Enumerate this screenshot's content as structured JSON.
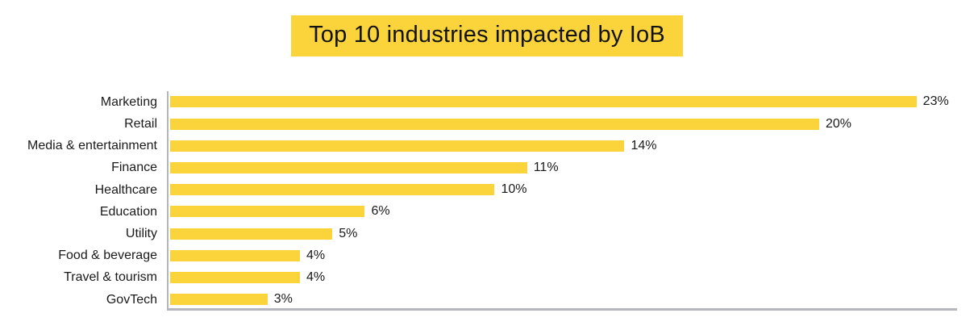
{
  "title": {
    "text": "Top 10 industries impacted by IoB",
    "highlight_color": "#FBD43C",
    "text_color": "#121212"
  },
  "chart_data": {
    "type": "bar",
    "orientation": "horizontal",
    "title": "Top 10 industries impacted by IoB",
    "xlabel": "",
    "ylabel": "",
    "categories": [
      "Marketing",
      "Retail",
      "Media & entertainment",
      "Finance",
      "Healthcare",
      "Education",
      "Utility",
      "Food & beverage",
      "Travel & tourism",
      "GovTech"
    ],
    "values": [
      23,
      20,
      14,
      11,
      10,
      6,
      5,
      4,
      4,
      3
    ],
    "data_labels": [
      "23%",
      "20%",
      "14%",
      "11%",
      "10%",
      "6%",
      "5%",
      "4%",
      "4%",
      "3%"
    ],
    "value_unit": "%",
    "xlim": [
      0,
      24.3
    ],
    "grid": false,
    "legend": "none",
    "bar_color": "#FBD43C",
    "axis_color": "#b6b6be"
  }
}
